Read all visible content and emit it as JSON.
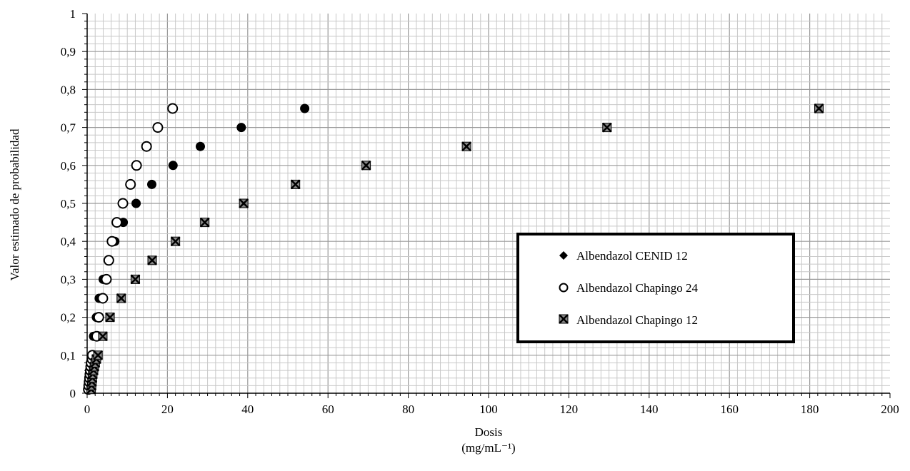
{
  "chart_data": {
    "type": "scatter",
    "xlabel": "Dosis",
    "xlabel_unit": "(mg/mL⁻¹)",
    "ylabel": "Valor estimado de probabilidad",
    "xlim": [
      0,
      200
    ],
    "ylim": [
      0,
      1
    ],
    "x_ticks": [
      "0",
      "20",
      "40",
      "60",
      "80",
      "100",
      "120",
      "140",
      "160",
      "180",
      "200"
    ],
    "y_ticks": [
      "0",
      "0,1",
      "0,2",
      "0,3",
      "0,4",
      "0,5",
      "0,6",
      "0,7",
      "0,8",
      "0,9",
      "1"
    ],
    "grid": true,
    "legend_position": "right",
    "series": [
      {
        "name": "Albendazol CENID 12",
        "marker": "filled-circle",
        "points": [
          {
            "x": 0.5,
            "y": 0.01
          },
          {
            "x": 0.6,
            "y": 0.02
          },
          {
            "x": 0.7,
            "y": 0.03
          },
          {
            "x": 0.8,
            "y": 0.04
          },
          {
            "x": 0.9,
            "y": 0.05
          },
          {
            "x": 1.0,
            "y": 0.06
          },
          {
            "x": 1.1,
            "y": 0.07
          },
          {
            "x": 1.2,
            "y": 0.08
          },
          {
            "x": 1.4,
            "y": 0.09
          },
          {
            "x": 1.5,
            "y": 0.1
          },
          {
            "x": 1.6,
            "y": 0.15
          },
          {
            "x": 2.3,
            "y": 0.2
          },
          {
            "x": 3.0,
            "y": 0.25
          },
          {
            "x": 4.0,
            "y": 0.3
          },
          {
            "x": 5.3,
            "y": 0.35
          },
          {
            "x": 6.9,
            "y": 0.4
          },
          {
            "x": 9.0,
            "y": 0.45
          },
          {
            "x": 12.2,
            "y": 0.5
          },
          {
            "x": 16.1,
            "y": 0.55
          },
          {
            "x": 21.4,
            "y": 0.6
          },
          {
            "x": 28.2,
            "y": 0.65
          },
          {
            "x": 38.4,
            "y": 0.7
          },
          {
            "x": 54.2,
            "y": 0.75
          }
        ]
      },
      {
        "name": "Albendazol Chapingo 24",
        "marker": "open-circle",
        "points": [
          {
            "x": 0.3,
            "y": 0.01
          },
          {
            "x": 0.4,
            "y": 0.02
          },
          {
            "x": 0.5,
            "y": 0.03
          },
          {
            "x": 0.6,
            "y": 0.04
          },
          {
            "x": 0.7,
            "y": 0.05
          },
          {
            "x": 0.8,
            "y": 0.06
          },
          {
            "x": 0.9,
            "y": 0.07
          },
          {
            "x": 1.0,
            "y": 0.08
          },
          {
            "x": 1.2,
            "y": 0.09
          },
          {
            "x": 1.3,
            "y": 0.1
          },
          {
            "x": 2.4,
            "y": 0.15
          },
          {
            "x": 2.9,
            "y": 0.2
          },
          {
            "x": 3.9,
            "y": 0.25
          },
          {
            "x": 4.8,
            "y": 0.3
          },
          {
            "x": 5.4,
            "y": 0.35
          },
          {
            "x": 6.2,
            "y": 0.4
          },
          {
            "x": 7.4,
            "y": 0.45
          },
          {
            "x": 8.9,
            "y": 0.5
          },
          {
            "x": 10.8,
            "y": 0.55
          },
          {
            "x": 12.3,
            "y": 0.6
          },
          {
            "x": 14.8,
            "y": 0.65
          },
          {
            "x": 17.6,
            "y": 0.7
          },
          {
            "x": 21.3,
            "y": 0.75
          }
        ]
      },
      {
        "name": "Albendazol Chapingo 12",
        "marker": "x-square",
        "points": [
          {
            "x": 1.0,
            "y": 0.01
          },
          {
            "x": 1.1,
            "y": 0.02
          },
          {
            "x": 1.2,
            "y": 0.03
          },
          {
            "x": 1.3,
            "y": 0.04
          },
          {
            "x": 1.4,
            "y": 0.05
          },
          {
            "x": 1.6,
            "y": 0.06
          },
          {
            "x": 1.8,
            "y": 0.07
          },
          {
            "x": 2.0,
            "y": 0.08
          },
          {
            "x": 2.3,
            "y": 0.09
          },
          {
            "x": 2.7,
            "y": 0.1
          },
          {
            "x": 3.9,
            "y": 0.15
          },
          {
            "x": 5.7,
            "y": 0.2
          },
          {
            "x": 8.5,
            "y": 0.25
          },
          {
            "x": 12.0,
            "y": 0.3
          },
          {
            "x": 16.2,
            "y": 0.35
          },
          {
            "x": 22.0,
            "y": 0.4
          },
          {
            "x": 29.3,
            "y": 0.45
          },
          {
            "x": 39.0,
            "y": 0.5
          },
          {
            "x": 51.9,
            "y": 0.55
          },
          {
            "x": 69.5,
            "y": 0.6
          },
          {
            "x": 94.5,
            "y": 0.65
          },
          {
            "x": 129.5,
            "y": 0.7
          },
          {
            "x": 182.3,
            "y": 0.75
          }
        ]
      }
    ]
  },
  "legend": {
    "items": [
      {
        "label": "Albendazol CENID 12",
        "marker": "diamond-icon"
      },
      {
        "label": "Albendazol Chapingo 24",
        "marker": "open-circle-icon"
      },
      {
        "label": "Albendazol Chapingo 12",
        "marker": "x-square-icon"
      }
    ]
  }
}
